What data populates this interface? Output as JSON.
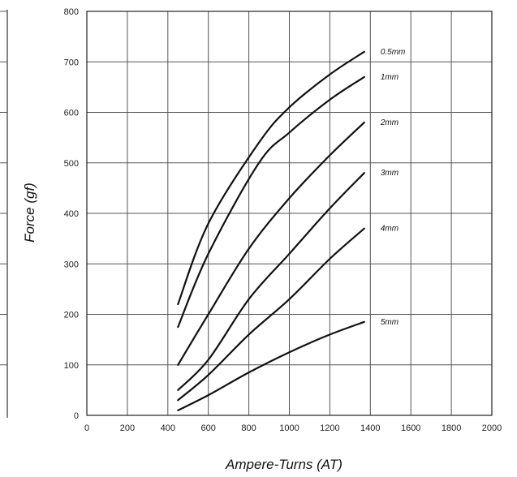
{
  "chart_data": {
    "type": "line",
    "xlabel": "Ampere-Turns (AT)",
    "ylabel": "Force (gf)",
    "xlim": [
      0,
      2000
    ],
    "ylim": [
      0,
      800
    ],
    "xticks": [
      0,
      200,
      400,
      600,
      800,
      1000,
      1200,
      1400,
      1600,
      1800,
      2000
    ],
    "yticks": [
      0,
      100,
      200,
      300,
      400,
      500,
      600,
      700,
      800
    ],
    "grid": true,
    "legend": "labels at right end of each curve",
    "series": [
      {
        "name": "0.5mm",
        "x": [
          450,
          600,
          850,
          1000,
          1200,
          1370
        ],
        "y": [
          220,
          380,
          540,
          610,
          675,
          720
        ]
      },
      {
        "name": "1mm",
        "x": [
          450,
          600,
          850,
          1000,
          1200,
          1370
        ],
        "y": [
          175,
          320,
          500,
          560,
          625,
          670
        ]
      },
      {
        "name": "2mm",
        "x": [
          450,
          600,
          800,
          1000,
          1200,
          1370
        ],
        "y": [
          100,
          200,
          330,
          430,
          515,
          580
        ]
      },
      {
        "name": "3mm",
        "x": [
          450,
          600,
          800,
          1000,
          1200,
          1370
        ],
        "y": [
          50,
          110,
          230,
          320,
          410,
          480
        ]
      },
      {
        "name": "4mm",
        "x": [
          450,
          600,
          800,
          1000,
          1200,
          1370
        ],
        "y": [
          30,
          80,
          160,
          230,
          310,
          370
        ]
      },
      {
        "name": "5mm",
        "x": [
          450,
          600,
          800,
          1000,
          1200,
          1370
        ],
        "y": [
          10,
          40,
          85,
          125,
          160,
          185
        ]
      }
    ]
  }
}
